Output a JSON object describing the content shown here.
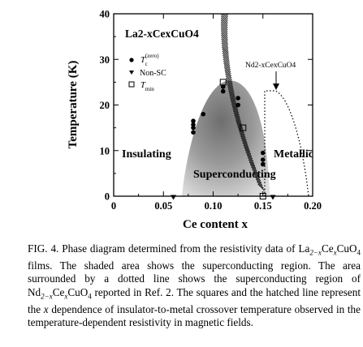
{
  "chart_data": {
    "type": "scatter",
    "xlabel": "Ce content x",
    "ylabel": "Temperature (K)",
    "xlim": [
      0,
      0.2
    ],
    "ylim": [
      0,
      40
    ],
    "x_ticks": [
      "0",
      "0.05",
      "0.10",
      "0.15",
      "0.20"
    ],
    "y_ticks": [
      "0",
      "10",
      "20",
      "30",
      "40"
    ],
    "compound_label": "La2-xCexCuO4",
    "nd_label": "Nd2-xCexCuO4",
    "region_labels": {
      "insulating": "Insulating",
      "superconducting": "Superconducting",
      "metallic": "Metallic"
    },
    "legend": {
      "tc": "T",
      "tc_sub": "c",
      "tc_sup": "(zero)",
      "nonsc": "Non-SC",
      "tmin": "T",
      "tmin_sub": "min"
    },
    "series": [
      {
        "name": "Tc(zero)",
        "marker": "circle",
        "points": [
          [
            0.08,
            14.0
          ],
          [
            0.08,
            15.0
          ],
          [
            0.08,
            15.7
          ],
          [
            0.08,
            16.5
          ],
          [
            0.09,
            18.0
          ],
          [
            0.11,
            23.0
          ],
          [
            0.11,
            24.0
          ],
          [
            0.125,
            21.5
          ],
          [
            0.125,
            20.0
          ],
          [
            0.15,
            9.5
          ],
          [
            0.15,
            8.0
          ],
          [
            0.15,
            7.0
          ]
        ]
      },
      {
        "name": "Non-SC",
        "marker": "triangle-down",
        "points": [
          [
            0.06,
            0
          ],
          [
            0.16,
            0
          ]
        ]
      },
      {
        "name": "Tmin",
        "marker": "square",
        "points": [
          [
            0.11,
            25.0
          ],
          [
            0.13,
            15.0
          ],
          [
            0.15,
            0
          ]
        ]
      }
    ]
  },
  "caption": {
    "fig": "FIG. 4.",
    "line1": "Phase diagram determined from the resistivity data of",
    "line2_pre": "La",
    "line2_sub1": "2−x",
    "line2_ce": "Ce",
    "line2_sub2": "x",
    "line2_cu": "CuO",
    "line2_sub3": "4",
    "line2_post": " films. The shaded area shows the superconducting region. The area surrounded by a dotted line shows the superconducting region of Nd",
    "nd_sub1": "2−x",
    "nd_ce": "Ce",
    "nd_sub2": "x",
    "nd_cu": "CuO",
    "nd_sub3": "4",
    "rest": " reported in Ref. 2. The squares and the hatched line represent the ",
    "xvar": "x",
    "rest2": " dependence of insulator-to-metal crossover temperature observed in the temperature-dependent resistivity in magnetic fields."
  }
}
